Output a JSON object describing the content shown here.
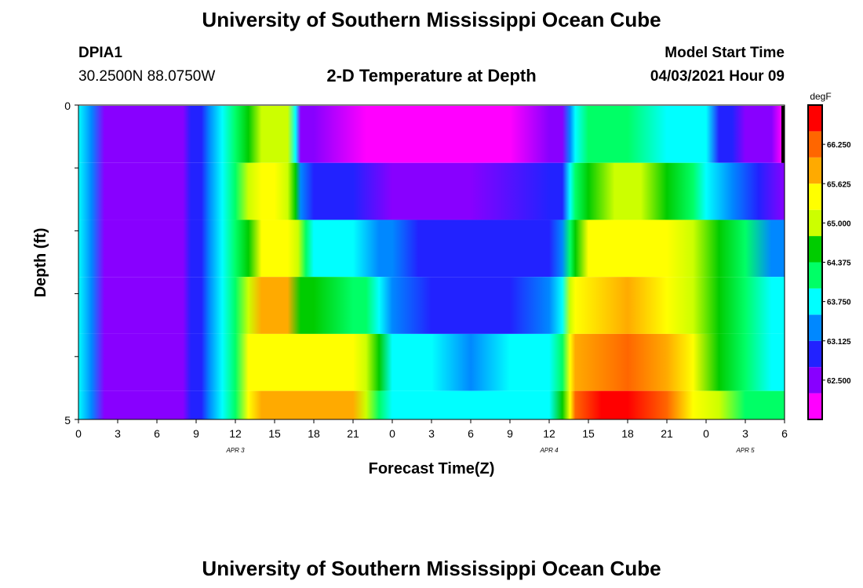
{
  "header": {
    "title": "University of Southern Mississippi Ocean Cube",
    "station_id": "DPIA1",
    "coords": "30.2500N  88.0750W",
    "plot_title": "2-D Temperature at Depth",
    "model_label": "Model Start Time",
    "model_time": "04/03/2021 Hour 09"
  },
  "footer": {
    "title": "University of Southern Mississippi Ocean Cube"
  },
  "chart_data": {
    "type": "heatmap",
    "title": "2-D Temperature at Depth",
    "xlabel": "Forecast Time(Z)",
    "ylabel": "Depth (ft)",
    "units": "degF",
    "xlim": [
      0,
      54
    ],
    "ylim": [
      5,
      0
    ],
    "x_tick_labels": [
      "0",
      "3",
      "6",
      "9",
      "12",
      "15",
      "18",
      "21",
      "0",
      "3",
      "6",
      "9",
      "12",
      "15",
      "18",
      "21",
      "0",
      "3",
      "6"
    ],
    "y_tick_labels": [
      "0",
      "5"
    ],
    "date_labels": [
      {
        "hour": 12,
        "label": "APR 3"
      },
      {
        "hour": 36,
        "label": "APR 4"
      },
      {
        "hour": 51,
        "label": "APR 5"
      }
    ],
    "colorbar": {
      "label": "degF",
      "min": 61.875,
      "max": 66.875,
      "ticks": [
        "66.250",
        "65.625",
        "65.000",
        "64.375",
        "63.750",
        "63.125",
        "62.500"
      ],
      "colors": [
        "#ff00ff",
        "#8800ff",
        "#2222ff",
        "#0088ff",
        "#00ffff",
        "#00ff66",
        "#00cc00",
        "#ccff00",
        "#ffff00",
        "#ffaa00",
        "#ff6600",
        "#ff0000"
      ]
    },
    "depth_rows": [
      {
        "depth": "0-1 ft",
        "keyframes": [
          [
            0,
            63.6
          ],
          [
            1,
            63.4
          ],
          [
            2,
            62.7
          ],
          [
            3,
            62.4
          ],
          [
            6,
            62.3
          ],
          [
            8,
            62.4
          ],
          [
            8.6,
            62.8
          ],
          [
            9.4,
            63.0
          ],
          [
            10,
            63.3
          ],
          [
            11,
            63.7
          ],
          [
            12,
            64.0
          ],
          [
            13,
            64.4
          ],
          [
            14,
            64.8
          ],
          [
            15,
            65.0
          ],
          [
            16,
            64.8
          ],
          [
            16.6,
            63.7
          ],
          [
            17,
            62.6
          ],
          [
            18,
            62.4
          ],
          [
            22,
            62.2
          ],
          [
            27,
            62.1
          ],
          [
            30,
            62.1
          ],
          [
            33,
            62.2
          ],
          [
            36,
            62.5
          ],
          [
            37,
            62.7
          ],
          [
            37.6,
            63.4
          ],
          [
            38,
            63.9
          ],
          [
            39,
            64.1
          ],
          [
            42,
            64.0
          ],
          [
            45,
            63.9
          ],
          [
            48,
            63.6
          ],
          [
            49,
            63.1
          ],
          [
            50,
            62.8
          ],
          [
            51,
            62.6
          ],
          [
            53,
            62.3
          ],
          [
            53.8,
            62.0
          ],
          [
            54,
            62.0
          ]
        ]
      },
      {
        "depth": "1-2 ft",
        "keyframes": [
          [
            0,
            63.6
          ],
          [
            1,
            63.4
          ],
          [
            2,
            62.7
          ],
          [
            3,
            62.4
          ],
          [
            6,
            62.3
          ],
          [
            8,
            62.4
          ],
          [
            8.6,
            62.8
          ],
          [
            9.4,
            63.0
          ],
          [
            10,
            63.3
          ],
          [
            11,
            63.7
          ],
          [
            12,
            64.2
          ],
          [
            13,
            64.8
          ],
          [
            14,
            65.4
          ],
          [
            15,
            65.6
          ],
          [
            16,
            65.2
          ],
          [
            16.6,
            64.4
          ],
          [
            17,
            63.2
          ],
          [
            18,
            62.9
          ],
          [
            21,
            62.8
          ],
          [
            24,
            62.7
          ],
          [
            30,
            62.7
          ],
          [
            36,
            62.8
          ],
          [
            37,
            63.0
          ],
          [
            37.6,
            63.7
          ],
          [
            38,
            64.2
          ],
          [
            39,
            64.5
          ],
          [
            41,
            64.8
          ],
          [
            43,
            64.9
          ],
          [
            45,
            64.7
          ],
          [
            47,
            64.2
          ],
          [
            48,
            63.7
          ],
          [
            50,
            63.3
          ],
          [
            52,
            62.9
          ],
          [
            54,
            62.6
          ]
        ]
      },
      {
        "depth": "2-3 ft",
        "keyframes": [
          [
            0,
            63.6
          ],
          [
            1,
            63.4
          ],
          [
            2,
            62.7
          ],
          [
            3,
            62.4
          ],
          [
            6,
            62.3
          ],
          [
            8,
            62.4
          ],
          [
            8.6,
            62.8
          ],
          [
            9.4,
            63.0
          ],
          [
            10,
            63.3
          ],
          [
            11,
            63.7
          ],
          [
            12,
            64.1
          ],
          [
            13,
            64.6
          ],
          [
            14,
            65.5
          ],
          [
            16,
            65.6
          ],
          [
            16.8,
            64.8
          ],
          [
            17.4,
            64.3
          ],
          [
            18,
            63.9
          ],
          [
            21,
            63.9
          ],
          [
            23,
            63.5
          ],
          [
            24,
            63.2
          ],
          [
            26,
            63.0
          ],
          [
            30,
            62.9
          ],
          [
            36,
            63.0
          ],
          [
            37,
            63.3
          ],
          [
            37.6,
            64.0
          ],
          [
            38,
            64.6
          ],
          [
            39,
            65.3
          ],
          [
            42,
            65.6
          ],
          [
            45,
            65.3
          ],
          [
            47,
            64.8
          ],
          [
            49,
            64.5
          ],
          [
            51,
            64.0
          ],
          [
            53,
            63.5
          ],
          [
            54,
            63.2
          ]
        ]
      },
      {
        "depth": "3-4 ft",
        "keyframes": [
          [
            0,
            63.6
          ],
          [
            1,
            63.4
          ],
          [
            2,
            62.7
          ],
          [
            3,
            62.4
          ],
          [
            6,
            62.3
          ],
          [
            8,
            62.4
          ],
          [
            8.6,
            62.8
          ],
          [
            9.4,
            63.0
          ],
          [
            10,
            63.3
          ],
          [
            11,
            63.7
          ],
          [
            12,
            64.1
          ],
          [
            13,
            64.8
          ],
          [
            14,
            65.7
          ],
          [
            16,
            65.7
          ],
          [
            17,
            64.6
          ],
          [
            18,
            64.4
          ],
          [
            21,
            64.3
          ],
          [
            22,
            64.0
          ],
          [
            23,
            63.6
          ],
          [
            24,
            63.3
          ],
          [
            27,
            63.1
          ],
          [
            33,
            63.1
          ],
          [
            36,
            63.2
          ],
          [
            37,
            63.7
          ],
          [
            37.6,
            64.8
          ],
          [
            38,
            65.6
          ],
          [
            42,
            65.8
          ],
          [
            45,
            65.6
          ],
          [
            47,
            65.1
          ],
          [
            49,
            64.5
          ],
          [
            51,
            64.0
          ],
          [
            53,
            63.8
          ],
          [
            54,
            63.6
          ]
        ]
      },
      {
        "depth": "4-5 ft",
        "keyframes": [
          [
            0,
            63.6
          ],
          [
            1,
            63.4
          ],
          [
            2,
            62.7
          ],
          [
            3,
            62.4
          ],
          [
            6,
            62.3
          ],
          [
            8,
            62.4
          ],
          [
            8.6,
            62.8
          ],
          [
            9.4,
            63.0
          ],
          [
            10,
            63.3
          ],
          [
            11,
            63.7
          ],
          [
            12,
            64.2
          ],
          [
            13,
            65.3
          ],
          [
            14,
            65.6
          ],
          [
            21,
            65.6
          ],
          [
            22,
            65.1
          ],
          [
            23,
            64.4
          ],
          [
            24,
            63.9
          ],
          [
            27,
            63.6
          ],
          [
            30,
            63.5
          ],
          [
            33,
            63.6
          ],
          [
            36,
            63.7
          ],
          [
            37,
            64.3
          ],
          [
            37.6,
            65.5
          ],
          [
            38,
            66.0
          ],
          [
            42,
            66.3
          ],
          [
            45,
            65.9
          ],
          [
            47,
            65.4
          ],
          [
            49,
            64.7
          ],
          [
            51,
            64.2
          ],
          [
            53,
            63.9
          ],
          [
            54,
            63.8
          ]
        ]
      },
      {
        "depth": "5 ft",
        "keyframes": [
          [
            0,
            63.6
          ],
          [
            1,
            63.4
          ],
          [
            2,
            62.7
          ],
          [
            3,
            62.4
          ],
          [
            6,
            62.3
          ],
          [
            8,
            62.4
          ],
          [
            8.6,
            62.8
          ],
          [
            9.4,
            63.0
          ],
          [
            10,
            63.3
          ],
          [
            11,
            63.7
          ],
          [
            12,
            64.3
          ],
          [
            13,
            65.4
          ],
          [
            14,
            66.0
          ],
          [
            21,
            66.0
          ],
          [
            22,
            65.0
          ],
          [
            23,
            64.2
          ],
          [
            24,
            63.9
          ],
          [
            27,
            63.7
          ],
          [
            33,
            63.6
          ],
          [
            36,
            63.7
          ],
          [
            37,
            64.4
          ],
          [
            37.6,
            65.6
          ],
          [
            38,
            66.2
          ],
          [
            40,
            66.5
          ],
          [
            42,
            66.6
          ],
          [
            45,
            66.1
          ],
          [
            47,
            65.4
          ],
          [
            49,
            64.8
          ],
          [
            51,
            64.2
          ],
          [
            53,
            64.0
          ],
          [
            54,
            64.0
          ]
        ]
      }
    ]
  }
}
